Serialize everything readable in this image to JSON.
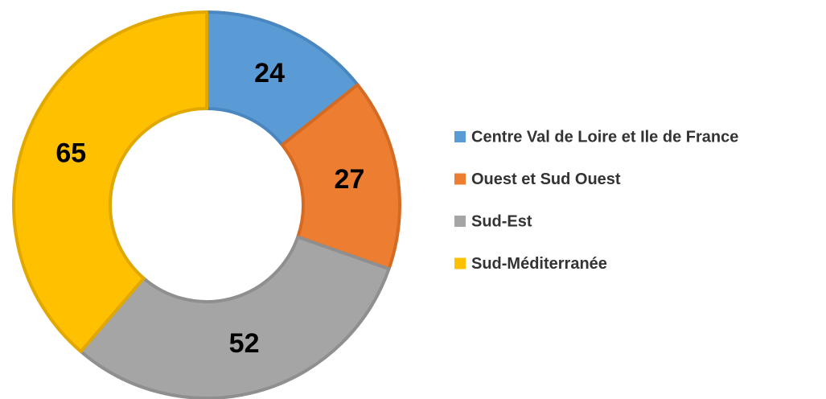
{
  "chart_data": {
    "type": "donut",
    "categories": [
      "Centre Val de Loire et Ile de France",
      "Ouest et Sud Ouest",
      "Sud-Est",
      "Sud-Méditerranée"
    ],
    "values": [
      24,
      27,
      52,
      65
    ],
    "colors": [
      "#5b9bd5",
      "#ed7d31",
      "#a5a5a5",
      "#ffc000"
    ],
    "stroke_colors": [
      "#4a87c0",
      "#d56a22",
      "#8f8f8f",
      "#e0a800"
    ],
    "legend": "right"
  }
}
